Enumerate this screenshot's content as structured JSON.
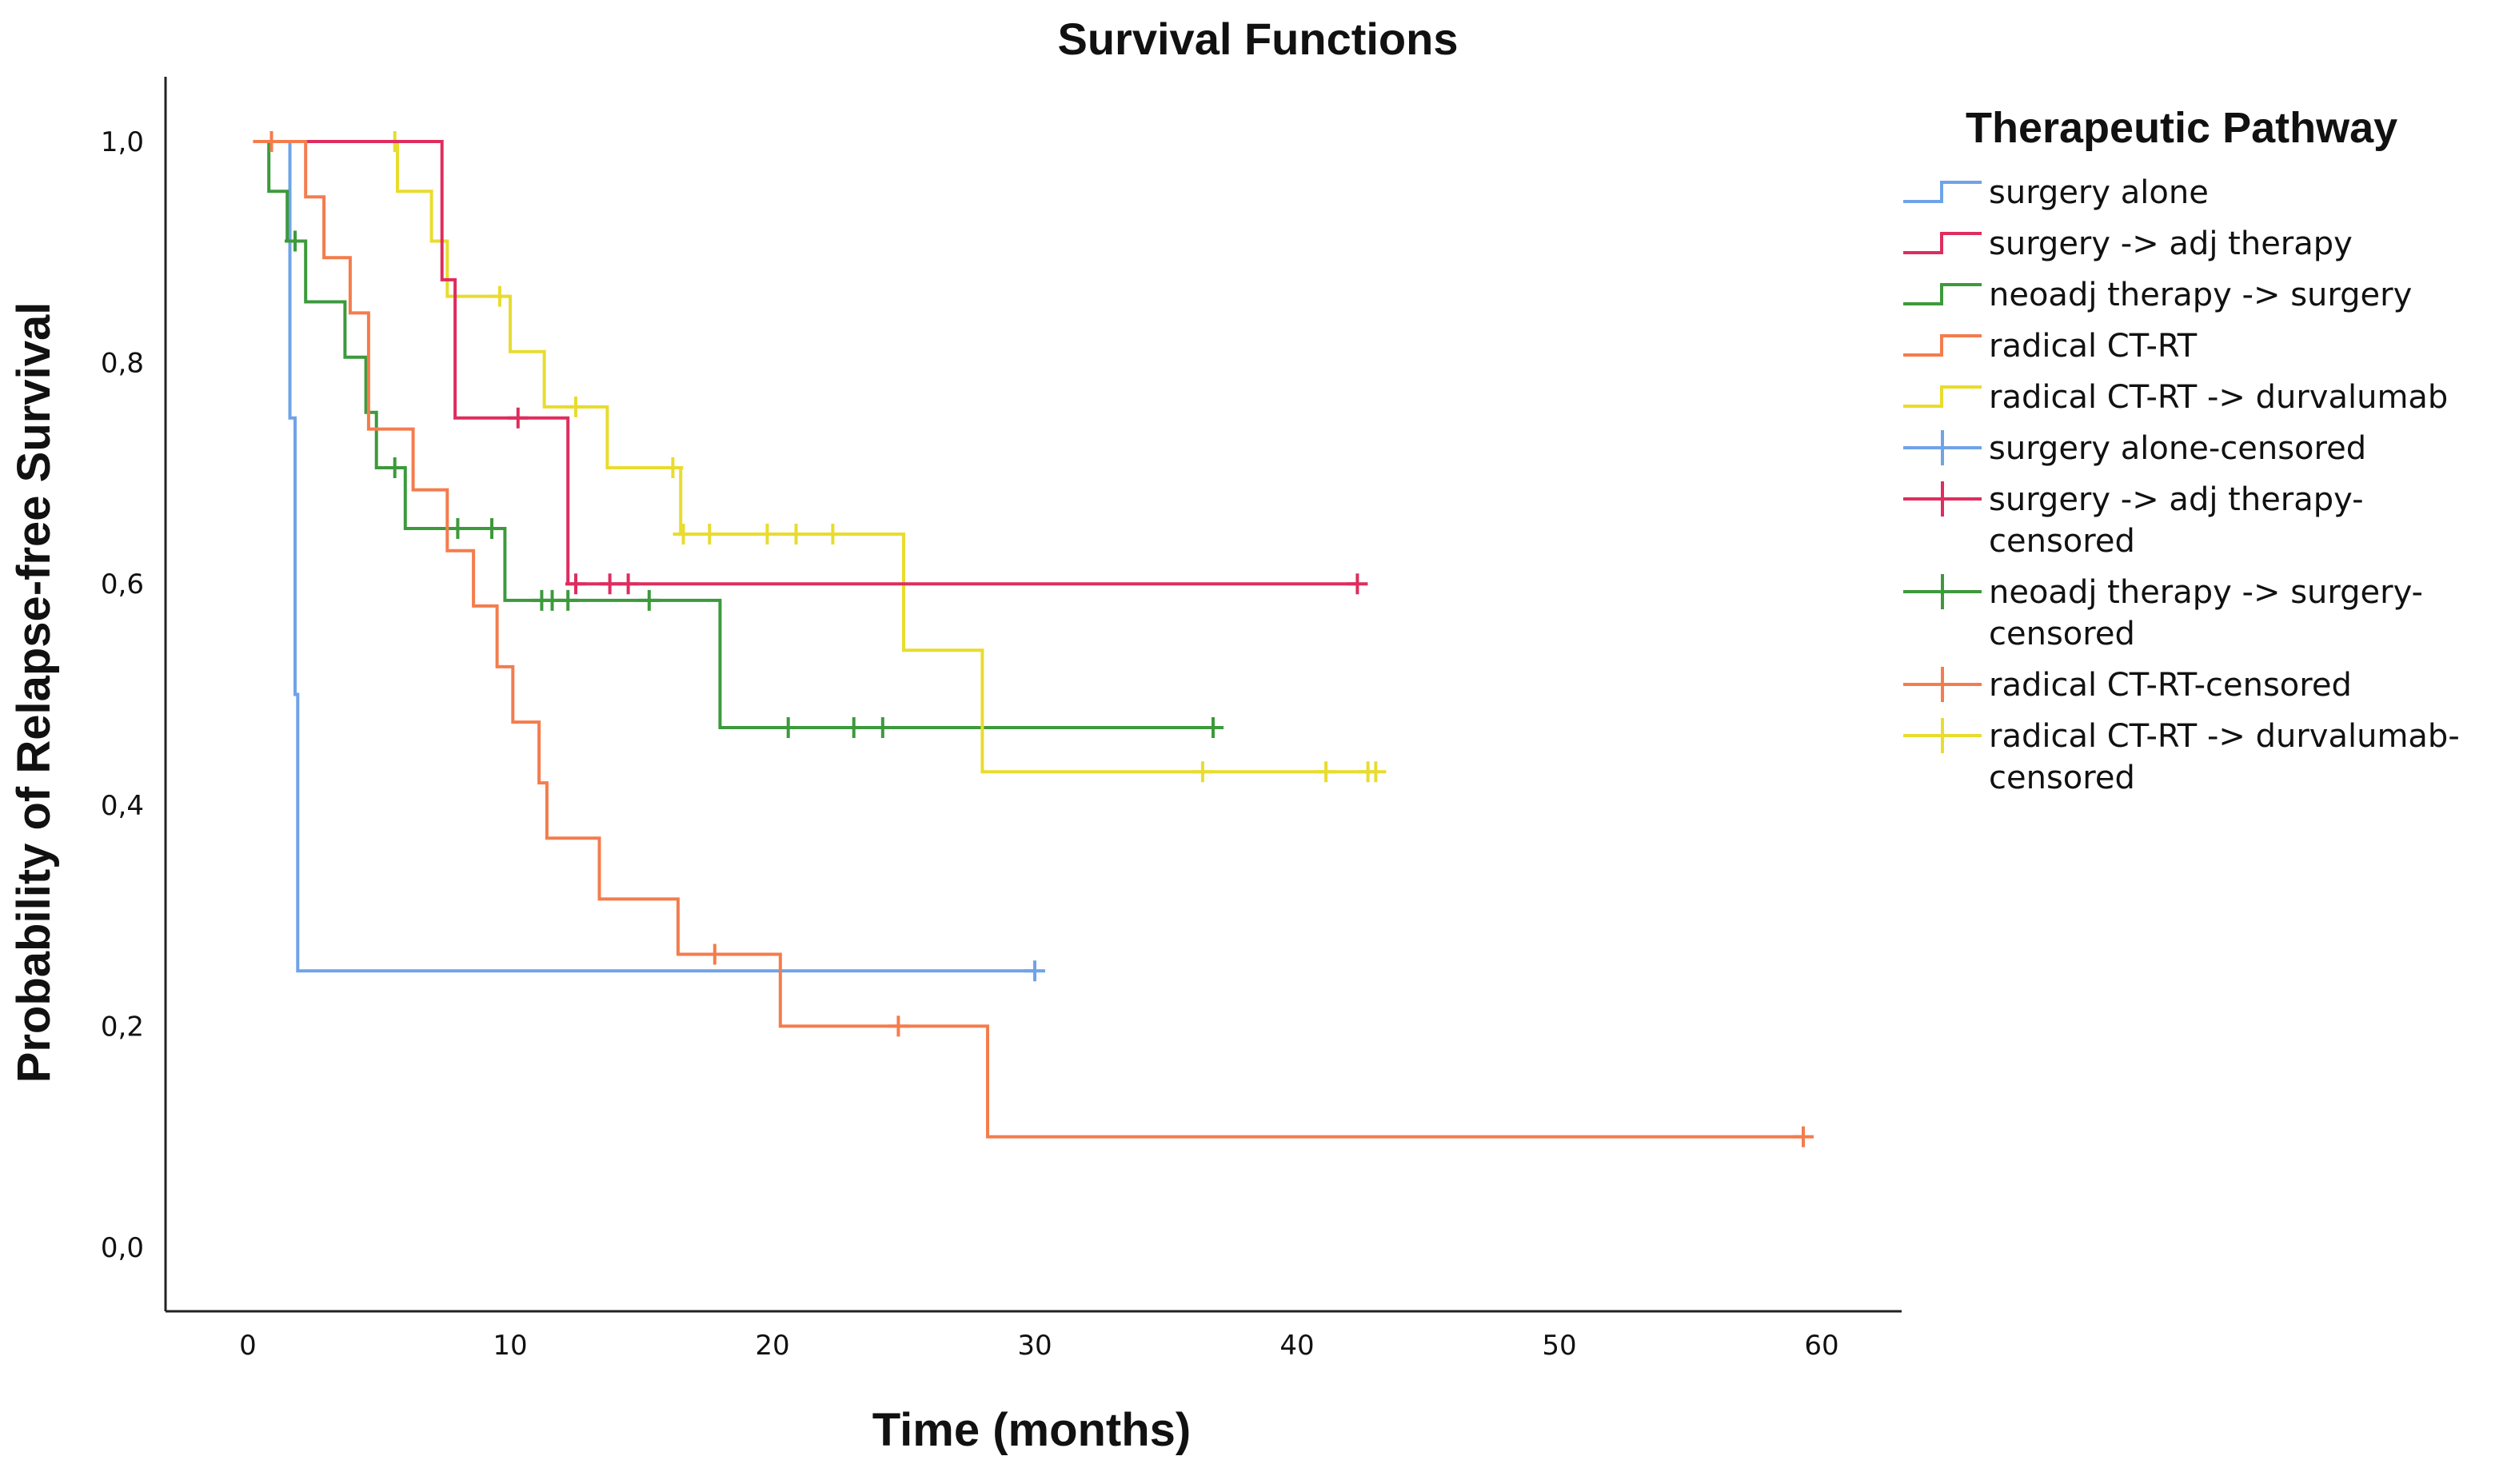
{
  "chart_data": {
    "type": "line",
    "title": "Survival Functions",
    "xlabel": "Time (months)",
    "ylabel": "Probability of Relapse-free Survival",
    "xlim": [
      -3,
      63
    ],
    "ylim": [
      -0.05,
      1.06
    ],
    "x_ticks": [
      "0",
      "10",
      "20",
      "30",
      "40",
      "50",
      "60"
    ],
    "x_tick_values": [
      0,
      10,
      20,
      30,
      40,
      50,
      60
    ],
    "y_ticks": [
      "0,0",
      "0,2",
      "0,4",
      "0,6",
      "0,8",
      "1,0"
    ],
    "y_tick_values": [
      0,
      0.2,
      0.4,
      0.6,
      0.8,
      1.0
    ],
    "legend_title": "Therapeutic Pathway",
    "legend_placement": "right",
    "series": [
      {
        "name": "surgery alone",
        "color": "#6FA3E8",
        "steps": [
          [
            0.2,
            1.0
          ],
          [
            1.6,
            1.0
          ],
          [
            1.6,
            0.75
          ],
          [
            1.8,
            0.75
          ],
          [
            1.8,
            0.5
          ],
          [
            1.9,
            0.5
          ],
          [
            1.9,
            0.25
          ],
          [
            30.0,
            0.25
          ]
        ],
        "censored": [
          [
            30.0,
            0.25
          ]
        ]
      },
      {
        "name": "surgery -> adj therapy",
        "color": "#DE2D5E",
        "steps": [
          [
            0.2,
            1.0
          ],
          [
            7.4,
            1.0
          ],
          [
            7.4,
            0.875
          ],
          [
            7.9,
            0.875
          ],
          [
            7.9,
            0.75
          ],
          [
            12.2,
            0.75
          ],
          [
            12.2,
            0.6
          ],
          [
            42.3,
            0.6
          ]
        ],
        "censored": [
          [
            10.3,
            0.75
          ],
          [
            12.5,
            0.6
          ],
          [
            13.8,
            0.6
          ],
          [
            14.5,
            0.6
          ],
          [
            42.3,
            0.6
          ]
        ]
      },
      {
        "name": "neoadj therapy -> surgery",
        "color": "#3C9A3C",
        "steps": [
          [
            0.6,
            1.0
          ],
          [
            0.8,
            1.0
          ],
          [
            0.8,
            0.955
          ],
          [
            1.5,
            0.955
          ],
          [
            1.5,
            0.91
          ],
          [
            2.2,
            0.91
          ],
          [
            2.2,
            0.855
          ],
          [
            3.7,
            0.855
          ],
          [
            3.7,
            0.805
          ],
          [
            4.5,
            0.805
          ],
          [
            4.5,
            0.755
          ],
          [
            4.9,
            0.755
          ],
          [
            4.9,
            0.705
          ],
          [
            6.0,
            0.705
          ],
          [
            6.0,
            0.65
          ],
          [
            9.8,
            0.65
          ],
          [
            9.8,
            0.585
          ],
          [
            18.0,
            0.585
          ],
          [
            18.0,
            0.47
          ],
          [
            36.8,
            0.47
          ]
        ],
        "censored": [
          [
            1.8,
            0.91
          ],
          [
            5.6,
            0.705
          ],
          [
            8.0,
            0.65
          ],
          [
            9.3,
            0.65
          ],
          [
            11.2,
            0.585
          ],
          [
            11.6,
            0.585
          ],
          [
            12.2,
            0.585
          ],
          [
            15.3,
            0.585
          ],
          [
            20.6,
            0.47
          ],
          [
            23.1,
            0.47
          ],
          [
            24.2,
            0.47
          ],
          [
            36.8,
            0.47
          ]
        ]
      },
      {
        "name": "radical CT-RT",
        "color": "#F47C4D",
        "steps": [
          [
            0.2,
            1.0
          ],
          [
            2.2,
            1.0
          ],
          [
            2.2,
            0.95
          ],
          [
            2.9,
            0.95
          ],
          [
            2.9,
            0.895
          ],
          [
            3.9,
            0.895
          ],
          [
            3.9,
            0.845
          ],
          [
            4.6,
            0.845
          ],
          [
            4.6,
            0.74
          ],
          [
            6.3,
            0.74
          ],
          [
            6.3,
            0.685
          ],
          [
            7.6,
            0.685
          ],
          [
            7.6,
            0.63
          ],
          [
            8.6,
            0.63
          ],
          [
            8.6,
            0.58
          ],
          [
            9.5,
            0.58
          ],
          [
            9.5,
            0.525
          ],
          [
            10.1,
            0.525
          ],
          [
            10.1,
            0.475
          ],
          [
            11.1,
            0.475
          ],
          [
            11.1,
            0.42
          ],
          [
            11.4,
            0.42
          ],
          [
            11.4,
            0.37
          ],
          [
            13.4,
            0.37
          ],
          [
            13.4,
            0.315
          ],
          [
            16.4,
            0.315
          ],
          [
            16.4,
            0.265
          ],
          [
            20.3,
            0.265
          ],
          [
            20.3,
            0.2
          ],
          [
            28.2,
            0.2
          ],
          [
            28.2,
            0.1
          ],
          [
            59.3,
            0.1
          ]
        ],
        "censored": [
          [
            0.9,
            1.0
          ],
          [
            17.8,
            0.265
          ],
          [
            24.8,
            0.2
          ],
          [
            59.3,
            0.1
          ]
        ]
      },
      {
        "name": "radical CT-RT -> durvalumab",
        "color": "#E8DC2E",
        "steps": [
          [
            0.2,
            1.0
          ],
          [
            5.7,
            1.0
          ],
          [
            5.7,
            0.955
          ],
          [
            7.0,
            0.955
          ],
          [
            7.0,
            0.91
          ],
          [
            7.6,
            0.91
          ],
          [
            7.6,
            0.86
          ],
          [
            10.0,
            0.86
          ],
          [
            10.0,
            0.81
          ],
          [
            11.3,
            0.81
          ],
          [
            11.3,
            0.76
          ],
          [
            13.7,
            0.76
          ],
          [
            13.7,
            0.705
          ],
          [
            16.5,
            0.705
          ],
          [
            16.5,
            0.645
          ],
          [
            25.0,
            0.645
          ],
          [
            25.0,
            0.54
          ],
          [
            28.0,
            0.54
          ],
          [
            28.0,
            0.43
          ],
          [
            42.8,
            0.43
          ]
        ],
        "censored": [
          [
            5.6,
            1.0
          ],
          [
            9.6,
            0.86
          ],
          [
            12.5,
            0.76
          ],
          [
            16.2,
            0.705
          ],
          [
            16.6,
            0.645
          ],
          [
            17.6,
            0.645
          ],
          [
            19.8,
            0.645
          ],
          [
            20.9,
            0.645
          ],
          [
            22.3,
            0.645
          ],
          [
            36.4,
            0.43
          ],
          [
            41.1,
            0.43
          ],
          [
            42.7,
            0.43
          ],
          [
            43.0,
            0.43
          ]
        ]
      }
    ],
    "legend_entries": [
      {
        "label": "surgery alone",
        "color": "#6FA3E8",
        "marker": "step"
      },
      {
        "label": "surgery -> adj therapy",
        "color": "#DE2D5E",
        "marker": "step"
      },
      {
        "label": "neoadj therapy -> surgery",
        "color": "#3C9A3C",
        "marker": "step"
      },
      {
        "label": "radical CT-RT",
        "color": "#F47C4D",
        "marker": "step"
      },
      {
        "label": "radical CT-RT -> durvalumab",
        "color": "#E8DC2E",
        "marker": "step"
      },
      {
        "label": "surgery alone-censored",
        "color": "#6FA3E8",
        "marker": "plus"
      },
      {
        "label": "surgery -> adj therapy-censored",
        "lines": [
          "surgery -> adj therapy-",
          "censored"
        ],
        "color": "#DE2D5E",
        "marker": "plus"
      },
      {
        "label": "neoadj therapy -> surgery-censored",
        "lines": [
          "neoadj therapy -> surgery-",
          "censored"
        ],
        "color": "#3C9A3C",
        "marker": "plus"
      },
      {
        "label": "radical CT-RT-censored",
        "color": "#F47C4D",
        "marker": "plus"
      },
      {
        "label": "radical CT-RT -> durvalumab-censored",
        "lines": [
          "radical CT-RT -> durvalumab-",
          "censored"
        ],
        "color": "#E8DC2E",
        "marker": "plus"
      }
    ]
  }
}
